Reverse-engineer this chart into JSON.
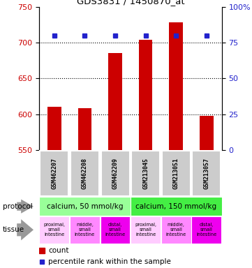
{
  "title": "GDS3831 / 1450870_at",
  "samples": [
    "GSM462207",
    "GSM462208",
    "GSM462209",
    "GSM213045",
    "GSM213051",
    "GSM213057"
  ],
  "count_values": [
    610,
    608,
    685,
    704,
    728,
    598
  ],
  "percentile_values": [
    80,
    80,
    80,
    80,
    80,
    80
  ],
  "ylim_left": [
    550,
    750
  ],
  "ylim_right": [
    0,
    100
  ],
  "yticks_left": [
    550,
    600,
    650,
    700,
    750
  ],
  "yticks_right": [
    0,
    25,
    50,
    75,
    100
  ],
  "bar_color": "#cc0000",
  "dot_color": "#2222cc",
  "protocol_groups": [
    {
      "label": "calcium, 50 mmol/kg",
      "indices": [
        0,
        1,
        2
      ],
      "color": "#99ff99"
    },
    {
      "label": "calcium, 150 mmol/kg",
      "indices": [
        3,
        4,
        5
      ],
      "color": "#44ee44"
    }
  ],
  "tissue_labels": [
    "proximal,\nsmall\nintestine",
    "middle,\nsmall\nintestine",
    "distal,\nsmall\nintestine",
    "proximal,\nsmall\nintestine",
    "middle,\nsmall\nintestine",
    "distal,\nsmall\nintestine"
  ],
  "tissue_colors": [
    "#ffccff",
    "#ff88ff",
    "#ee00ee",
    "#ffccff",
    "#ff88ff",
    "#ee00ee"
  ],
  "sample_box_color": "#cccccc",
  "left_axis_color": "#cc0000",
  "right_axis_color": "#2222cc",
  "background_color": "#ffffff",
  "arrow_color": "#999999"
}
